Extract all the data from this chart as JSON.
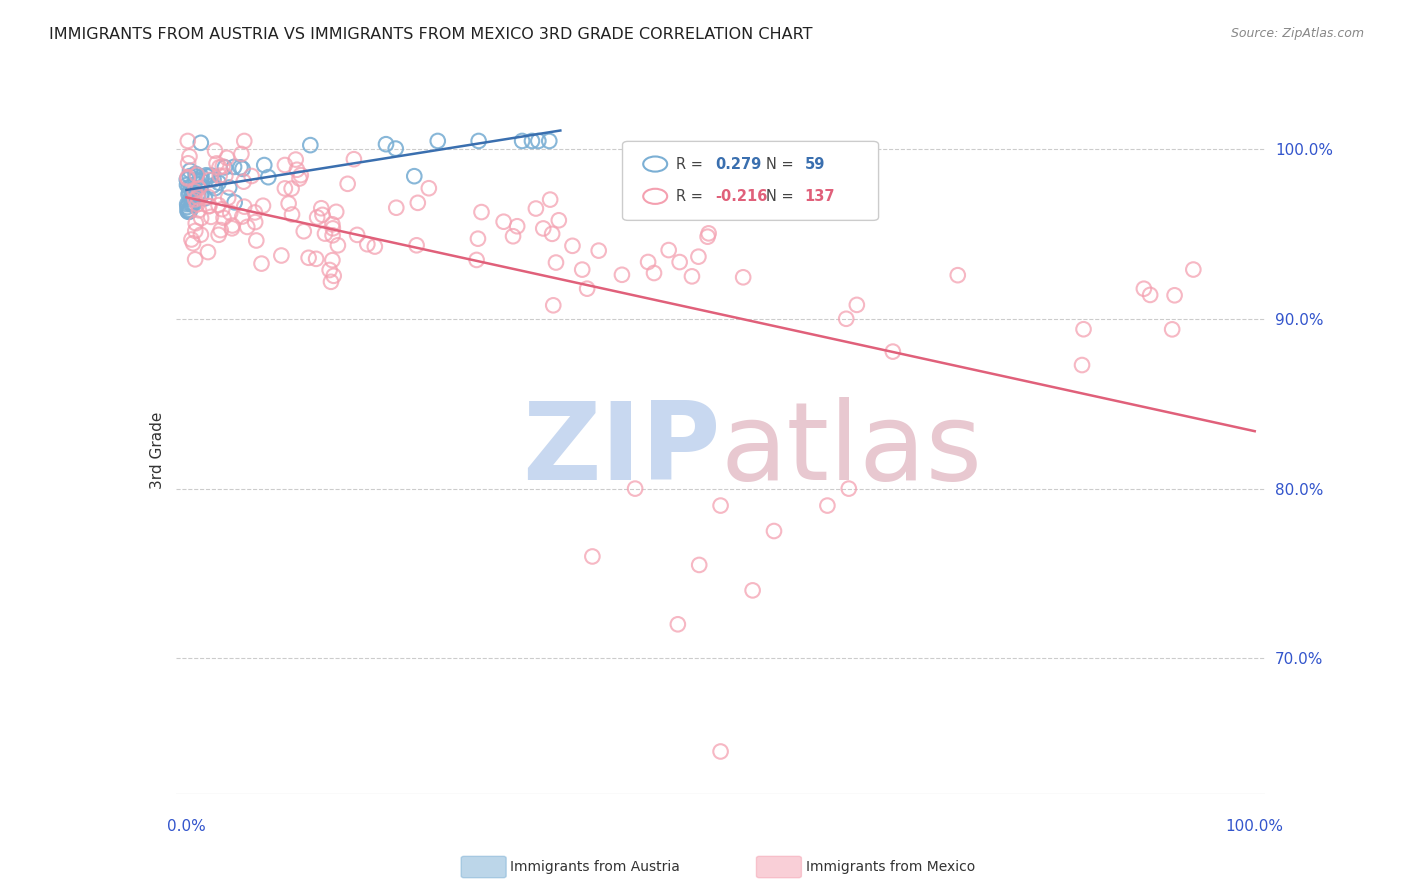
{
  "title": "IMMIGRANTS FROM AUSTRIA VS IMMIGRANTS FROM MEXICO 3RD GRADE CORRELATION CHART",
  "source": "Source: ZipAtlas.com",
  "ylabel": "3rd Grade",
  "ytick_labels": [
    "100.0%",
    "90.0%",
    "80.0%",
    "70.0%"
  ],
  "ytick_values": [
    1.0,
    0.9,
    0.8,
    0.7
  ],
  "ymin": 0.62,
  "ymax": 1.025,
  "xmin": -0.01,
  "xmax": 1.01,
  "austria_R": 0.279,
  "austria_N": 59,
  "mexico_R": -0.216,
  "mexico_N": 137,
  "austria_color": "#7bafd4",
  "mexico_color": "#f4a0b0",
  "austria_line_color": "#3a6faf",
  "mexico_line_color": "#e0607a",
  "background_color": "#ffffff",
  "grid_color": "#cccccc",
  "title_color": "#222222",
  "tick_label_color": "#3355cc",
  "watermark_zip_color": "#c8d8f0",
  "watermark_atlas_color": "#e8c8d0"
}
